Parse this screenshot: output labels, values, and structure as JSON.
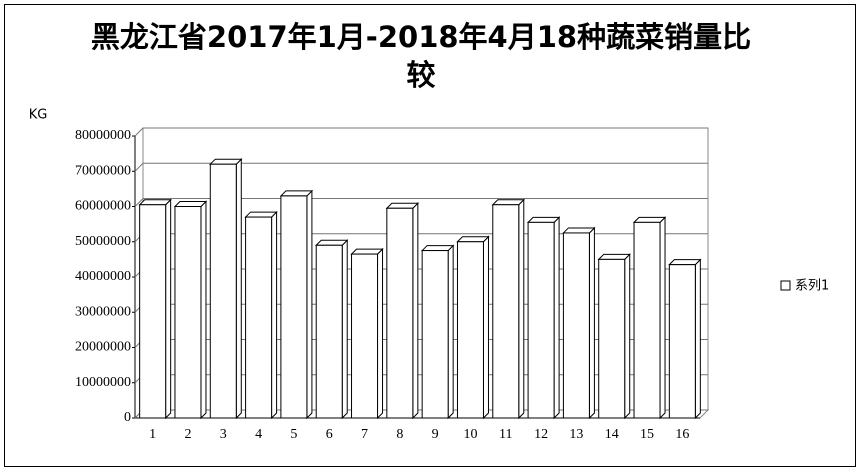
{
  "chart_data": {
    "type": "bar3d",
    "title": "黑龙江省2017年1月-2018年4月18种蔬菜销量比较",
    "y_label": "KG",
    "categories": [
      "1",
      "2",
      "3",
      "4",
      "5",
      "6",
      "7",
      "8",
      "9",
      "10",
      "11",
      "12",
      "13",
      "14",
      "15",
      "16"
    ],
    "series": [
      {
        "name": "系列1",
        "color": "#ffffff",
        "values": [
          60500000,
          60000000,
          72000000,
          57000000,
          63000000,
          49000000,
          46500000,
          59500000,
          47500000,
          50000000,
          60500000,
          55500000,
          52500000,
          45000000,
          55500000,
          43500000
        ]
      }
    ],
    "ylim": [
      0,
      80000000
    ],
    "yticks": [
      0,
      10000000,
      20000000,
      30000000,
      40000000,
      50000000,
      60000000,
      70000000,
      80000000
    ],
    "grid": true,
    "legend": "right"
  }
}
